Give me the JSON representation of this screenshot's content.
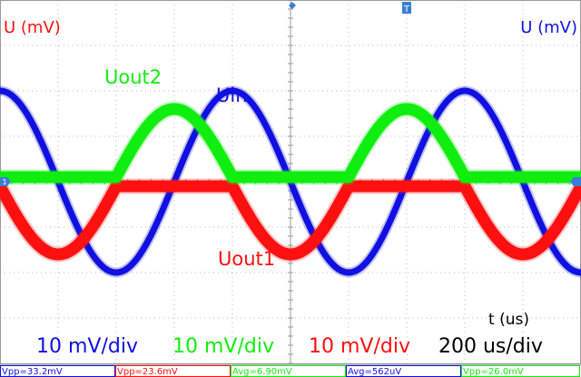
{
  "chart_data": {
    "type": "line",
    "grid": true,
    "x_divisions": 10,
    "y_divisions": 8,
    "x_per_div_us": 200,
    "y_per_div_mV": 10,
    "y_axis_left_label": "U (mV)",
    "y_axis_right_label": "U (mV)",
    "x_axis_label": "t (us)",
    "series": [
      {
        "name": "Uin",
        "color": "#1010e0",
        "kind": "sine",
        "amplitude_div": 2.0,
        "center_div": 0.0,
        "period_div": 4.0,
        "phase": "cos"
      },
      {
        "name": "Uout1",
        "color": "#ff1010",
        "kind": "half-wave",
        "amplitude_div": 1.5,
        "center_div": -0.1,
        "period_div": 4.0,
        "polarity": "negative",
        "phase": "-sin"
      },
      {
        "name": "Uout2",
        "color": "#10ee10",
        "kind": "half-wave",
        "amplitude_div": 1.5,
        "center_div": 0.1,
        "period_div": 4.0,
        "polarity": "positive",
        "phase": "-sin"
      }
    ],
    "scale_labels": [
      {
        "text": "10 mV/div",
        "color": "#1010e0"
      },
      {
        "text": "10 mV/div",
        "color": "#10ee10"
      },
      {
        "text": "10 mV/div",
        "color": "#ff1010"
      },
      {
        "text": "200 us/div",
        "color": "#000000"
      }
    ]
  },
  "measurements": [
    {
      "text": "Vpp=33.2mV",
      "color": "#1010e0"
    },
    {
      "text": "Vpp=23.6mV",
      "color": "#ff1010"
    },
    {
      "text": "Avg=6.90mV",
      "color": "#10ee10"
    },
    {
      "text": "Avg=562uV",
      "color": "#1010e0"
    },
    {
      "text": "Vpp=26.0mV",
      "color": "#10ee10"
    }
  ],
  "markers": {
    "trigger_top": "T",
    "ch1": "1"
  }
}
